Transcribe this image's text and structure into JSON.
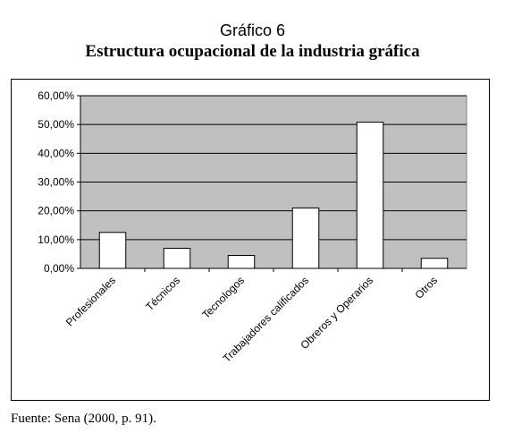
{
  "figure": {
    "label": "Gráfico 6",
    "title": "Estructura ocupacional de la industria gráfica",
    "source": "Fuente: Sena (2000, p. 91)."
  },
  "colors": {
    "plot_background": "#c0c0c0",
    "bar_fill": "#ffffff",
    "bar_stroke": "#000000",
    "grid": "#000000"
  },
  "chart_data": {
    "type": "bar",
    "categories": [
      "Profesionales",
      "Técnicos",
      "Tecnologos",
      "Trabajadores calificados",
      "Obreros y Operarios",
      "Otros"
    ],
    "values": [
      12.5,
      7.0,
      4.5,
      21.0,
      50.8,
      3.5
    ],
    "ylim": [
      0,
      60
    ],
    "yticks": [
      0,
      10,
      20,
      30,
      40,
      50,
      60
    ],
    "ytick_labels": [
      "0,00%",
      "10,00%",
      "20,00%",
      "30,00%",
      "40,00%",
      "50,00%",
      "60,00%"
    ],
    "grid": true,
    "legend": "none"
  }
}
